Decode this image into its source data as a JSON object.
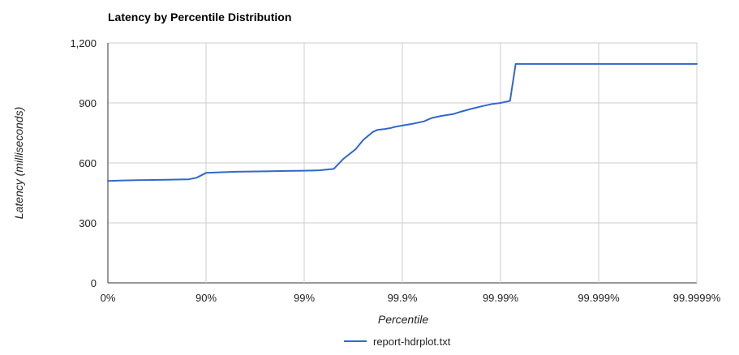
{
  "chart_data": {
    "type": "line",
    "title": "Latency by Percentile Distribution",
    "xlabel": "Percentile",
    "ylabel": "Latency (milliseconds)",
    "x_scale": "inverse-log (1/(1-percentile))",
    "xlim": [
      0,
      99.9999
    ],
    "ylim": [
      0,
      1200
    ],
    "x_ticks": [
      {
        "value": 0,
        "label": "0%"
      },
      {
        "value": 90,
        "label": "90%"
      },
      {
        "value": 99,
        "label": "99%"
      },
      {
        "value": 99.9,
        "label": "99.9%"
      },
      {
        "value": 99.99,
        "label": "99.99%"
      },
      {
        "value": 99.999,
        "label": "99.999%"
      },
      {
        "value": 99.9999,
        "label": "99.9999%"
      }
    ],
    "y_ticks": [
      {
        "value": 0,
        "label": "0"
      },
      {
        "value": 300,
        "label": "300"
      },
      {
        "value": 600,
        "label": "600"
      },
      {
        "value": 900,
        "label": "900"
      },
      {
        "value": 1200,
        "label": "1,200"
      }
    ],
    "grid": true,
    "legend_position": "bottom",
    "series": [
      {
        "name": "report-hdrplot.txt",
        "color": "#3366cc",
        "x": [
          0,
          25,
          50,
          65,
          75,
          80,
          85,
          87.5,
          90,
          95,
          97.5,
          98.5,
          99,
          99.3,
          99.5,
          99.6,
          99.7,
          99.75,
          99.8,
          99.82,
          99.85,
          99.87,
          99.88,
          99.9,
          99.92,
          99.94,
          99.95,
          99.96,
          99.97,
          99.975,
          99.98,
          99.985,
          99.988,
          99.99,
          99.991,
          99.992,
          99.993,
          99.995,
          99.999,
          99.9999
        ],
        "y": [
          510,
          512,
          514,
          515,
          516,
          517,
          518,
          526,
          550,
          556,
          558,
          560,
          561,
          563,
          570,
          620,
          668,
          715,
          755,
          765,
          770,
          775,
          780,
          787,
          795,
          808,
          825,
          835,
          845,
          857,
          870,
          885,
          895,
          900,
          905,
          910,
          1095,
          1095,
          1095,
          1095
        ]
      }
    ]
  }
}
